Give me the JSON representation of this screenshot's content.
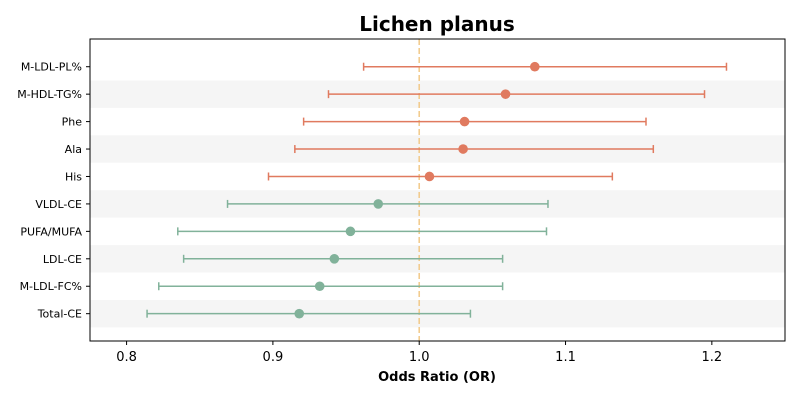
{
  "chart_data": {
    "type": "forest",
    "title": "Lichen planus",
    "xlabel": "Odds Ratio (OR)",
    "ylabel": "",
    "xlim": [
      0.775,
      1.25
    ],
    "xticks": [
      0.8,
      0.9,
      1.0,
      1.1,
      1.2
    ],
    "xtick_labels": [
      "0.8",
      "0.9",
      "1.0",
      "1.1",
      "1.2"
    ],
    "reference_line": 1.0,
    "colors": {
      "risk": "#e07a5f",
      "protective": "#81b29a",
      "reference": "#f2cc8f",
      "band": "#f5f5f5"
    },
    "rows": [
      {
        "label": "M-LDL-PL%",
        "or": 1.079,
        "lower": 0.962,
        "upper": 1.21,
        "group": "risk"
      },
      {
        "label": "M-HDL-TG%",
        "or": 1.059,
        "lower": 0.938,
        "upper": 1.195,
        "group": "risk"
      },
      {
        "label": "Phe",
        "or": 1.031,
        "lower": 0.921,
        "upper": 1.155,
        "group": "risk"
      },
      {
        "label": "Ala",
        "or": 1.03,
        "lower": 0.915,
        "upper": 1.16,
        "group": "risk"
      },
      {
        "label": "His",
        "or": 1.007,
        "lower": 0.897,
        "upper": 1.132,
        "group": "risk"
      },
      {
        "label": "VLDL-CE",
        "or": 0.972,
        "lower": 0.869,
        "upper": 1.088,
        "group": "protective"
      },
      {
        "label": "PUFA/MUFA",
        "or": 0.953,
        "lower": 0.835,
        "upper": 1.087,
        "group": "protective"
      },
      {
        "label": "LDL-CE",
        "or": 0.942,
        "lower": 0.839,
        "upper": 1.057,
        "group": "protective"
      },
      {
        "label": "M-LDL-FC%",
        "or": 0.932,
        "lower": 0.822,
        "upper": 1.057,
        "group": "protective"
      },
      {
        "label": "Total-CE",
        "or": 0.918,
        "lower": 0.814,
        "upper": 1.035,
        "group": "protective"
      }
    ]
  }
}
